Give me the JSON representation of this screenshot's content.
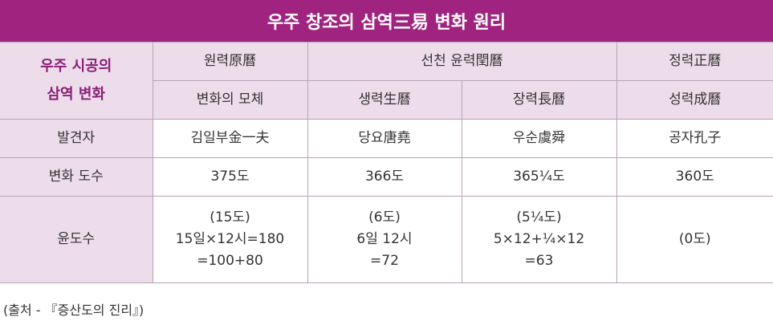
{
  "title": "우주 창조의 삼역三易 변화 원리",
  "table": {
    "corner": [
      "우주 시공의",
      "삼역 변화"
    ],
    "header_top": [
      "원력原曆",
      "선천 윤력閏曆",
      "정력正曆"
    ],
    "header_sub": [
      "변화의 모체",
      "생력生曆",
      "장력長曆",
      "성력成曆"
    ],
    "rows": [
      [
        "발견자",
        "김일부金一夫",
        "당요唐堯",
        "우순虞舜",
        "공자孔子"
      ],
      [
        "변화 도수",
        "375도",
        "366도",
        "365¼도",
        "360도"
      ],
      [
        "윤도수",
        [
          "(15도)",
          "15일×12시=180",
          "=100+80"
        ],
        [
          "(6도)",
          "6일 12시",
          "=72"
        ],
        [
          "(5¼도)",
          "5×12+¼×12",
          "=63"
        ],
        [
          "(0도)"
        ]
      ]
    ]
  },
  "source": "(출처 - 『증산도의 진리』)"
}
